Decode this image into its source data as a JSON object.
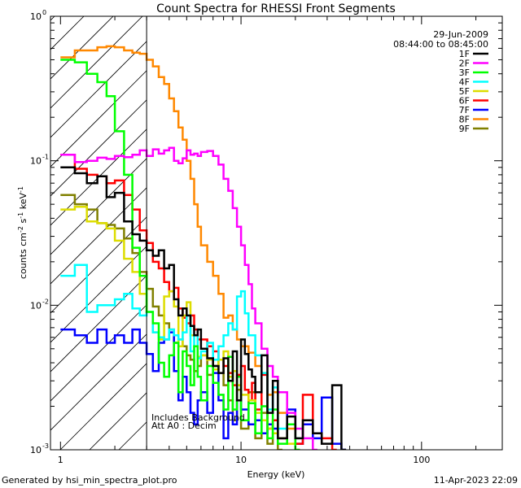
{
  "chart_data": {
    "type": "line",
    "title": "Count Spectra for RHESSI Front Segments",
    "xlabel": "Energy (keV)",
    "ylabel_main": "counts cm",
    "ylabel_exp1": "-2",
    "ylabel_mid": " s",
    "ylabel_exp2": "-1",
    "ylabel_end": " keV",
    "ylabel_exp3": "-1",
    "x_scale": "log",
    "y_scale": "log",
    "xlim": [
      0.88,
      280
    ],
    "ylim": [
      0.001,
      1
    ],
    "x_ticks": [
      {
        "v": 1,
        "label": "1"
      },
      {
        "v": 10,
        "label": "10"
      },
      {
        "v": 100,
        "label": "100"
      }
    ],
    "y_ticks": [
      {
        "v": 1,
        "base": "10",
        "exp": "0"
      },
      {
        "v": 0.1,
        "base": "10",
        "exp": "-1"
      },
      {
        "v": 0.01,
        "base": "10",
        "exp": "-2"
      },
      {
        "v": 0.001,
        "base": "10",
        "exp": "-3"
      }
    ],
    "date": "29-Jun-2009",
    "time_range": "08:44:00 to 08:45:00",
    "attenuator_cutoff_kev": 3,
    "note_lines": [
      "Includes Background",
      "Att A0 : Decim"
    ],
    "footer_left": "Generated by hsi_min_spectra_plot.pro",
    "footer_right": "11-Apr-2023 22:09",
    "legend_position": "top-right",
    "series": [
      {
        "name": "1F",
        "color": "#000000",
        "x": [
          1.0,
          1.2,
          1.4,
          1.6,
          1.8,
          2.0,
          2.25,
          2.5,
          2.75,
          3.0,
          3.25,
          3.5,
          3.75,
          4.0,
          4.25,
          4.5,
          4.75,
          5.0,
          5.25,
          5.5,
          5.75,
          6.0,
          6.5,
          7.0,
          7.5,
          8.0,
          8.5,
          9.0,
          9.5,
          10.0,
          10.5,
          11.0,
          11.5,
          12.0,
          13.0,
          14.0,
          15.0,
          16.0,
          18.0,
          20.0,
          22.0,
          25.0,
          28.0,
          32.0,
          36.0
        ],
        "y": [
          0.09,
          0.082,
          0.07,
          0.078,
          0.056,
          0.06,
          0.038,
          0.031,
          0.028,
          0.024,
          0.022,
          0.024,
          0.018,
          0.019,
          0.011,
          0.0085,
          0.0095,
          0.0085,
          0.0072,
          0.0062,
          0.0068,
          0.005,
          0.0043,
          0.0038,
          0.0034,
          0.0043,
          0.003,
          0.0048,
          0.0022,
          0.0058,
          0.0046,
          0.0036,
          0.0032,
          0.0025,
          0.0045,
          0.0018,
          0.003,
          0.0012,
          0.0017,
          0.0012,
          0.0016,
          0.0013,
          0.0011,
          0.0028,
          0.001
        ]
      },
      {
        "name": "2F",
        "color": "#ff00ff",
        "x": [
          1.0,
          1.2,
          1.4,
          1.6,
          1.8,
          2.0,
          2.25,
          2.5,
          2.75,
          3.0,
          3.25,
          3.5,
          3.75,
          4.0,
          4.25,
          4.5,
          4.75,
          5.0,
          5.25,
          5.5,
          5.75,
          6.0,
          6.5,
          7.0,
          7.5,
          8.0,
          8.5,
          9.0,
          9.5,
          10.0,
          10.5,
          11.0,
          11.5,
          12.0,
          13.0,
          14.0,
          15.0,
          16.0,
          18.0,
          20.0,
          22.0,
          25.0
        ],
        "y": [
          0.11,
          0.098,
          0.1,
          0.105,
          0.103,
          0.108,
          0.106,
          0.11,
          0.118,
          0.108,
          0.12,
          0.112,
          0.118,
          0.123,
          0.1,
          0.096,
          0.104,
          0.118,
          0.11,
          0.112,
          0.108,
          0.115,
          0.117,
          0.108,
          0.094,
          0.075,
          0.062,
          0.047,
          0.035,
          0.026,
          0.019,
          0.014,
          0.0095,
          0.0075,
          0.005,
          0.0038,
          0.0032,
          0.0025,
          0.0018,
          0.0014,
          0.0012,
          0.001
        ]
      },
      {
        "name": "3F",
        "color": "#00ff00",
        "x": [
          1.0,
          1.2,
          1.4,
          1.6,
          1.8,
          2.0,
          2.25,
          2.5,
          2.75,
          3.0,
          3.25,
          3.5,
          3.75,
          4.0,
          4.25,
          4.5,
          4.75,
          5.0,
          5.25,
          5.5,
          5.75,
          6.0,
          6.5,
          7.0,
          7.5,
          8.0,
          8.5,
          9.0,
          9.5,
          10.0,
          11.0,
          12.0,
          13.0,
          14.0,
          15.0,
          16.0,
          18.0,
          20.0
        ],
        "y": [
          0.5,
          0.48,
          0.4,
          0.35,
          0.28,
          0.16,
          0.08,
          0.025,
          0.016,
          0.009,
          0.0075,
          0.004,
          0.0032,
          0.0045,
          0.0055,
          0.0025,
          0.0048,
          0.0038,
          0.0028,
          0.0052,
          0.0032,
          0.0022,
          0.0038,
          0.0029,
          0.0024,
          0.0019,
          0.0044,
          0.0019,
          0.0032,
          0.0016,
          0.0021,
          0.0013,
          0.002,
          0.0012,
          0.0019,
          0.0011,
          0.0015,
          0.001
        ]
      },
      {
        "name": "4F",
        "color": "#00ffff",
        "x": [
          1.0,
          1.2,
          1.4,
          1.6,
          1.8,
          2.0,
          2.25,
          2.5,
          2.75,
          3.0,
          3.25,
          3.5,
          3.75,
          4.0,
          4.25,
          4.5,
          4.75,
          5.0,
          5.25,
          5.5,
          5.75,
          6.0,
          6.5,
          7.0,
          7.5,
          8.0,
          8.5,
          9.0,
          9.5,
          10.0,
          10.5,
          11.0,
          12.0,
          13.0,
          14.0,
          15.0,
          16.0,
          18.0,
          20.0
        ],
        "y": [
          0.016,
          0.019,
          0.009,
          0.01,
          0.01,
          0.011,
          0.012,
          0.0095,
          0.0085,
          0.009,
          0.0065,
          0.006,
          0.0058,
          0.0068,
          0.0062,
          0.0058,
          0.0065,
          0.0085,
          0.0048,
          0.0062,
          0.0043,
          0.0048,
          0.0055,
          0.0042,
          0.0052,
          0.0062,
          0.0075,
          0.0068,
          0.0115,
          0.0125,
          0.0088,
          0.0062,
          0.0045,
          0.0034,
          0.0019,
          0.0027,
          0.0014,
          0.0015,
          0.0012
        ]
      },
      {
        "name": "5F",
        "color": "#dddd00",
        "x": [
          1.0,
          1.2,
          1.4,
          1.6,
          1.8,
          2.0,
          2.25,
          2.5,
          2.75,
          3.0,
          3.25,
          3.5,
          3.75,
          4.0,
          4.25,
          4.5,
          4.75,
          5.0,
          5.25,
          5.5,
          5.75,
          6.0,
          6.5,
          7.0,
          7.5,
          8.0,
          8.5,
          9.0,
          9.5,
          10.0,
          11.0,
          12.0,
          13.0,
          14.0,
          15.0,
          16.0,
          18.0,
          20.0
        ],
        "y": [
          0.046,
          0.048,
          0.038,
          0.037,
          0.034,
          0.028,
          0.021,
          0.017,
          0.012,
          0.009,
          0.0065,
          0.0058,
          0.0115,
          0.0125,
          0.0098,
          0.0052,
          0.0085,
          0.0105,
          0.0062,
          0.0062,
          0.0044,
          0.0045,
          0.0042,
          0.0036,
          0.0042,
          0.0048,
          0.0032,
          0.0035,
          0.0028,
          0.0024,
          0.0022,
          0.0018,
          0.0016,
          0.0014,
          0.0013,
          0.0012,
          0.0011,
          0.001
        ]
      },
      {
        "name": "6F",
        "color": "#ff0000",
        "x": [
          1.0,
          1.2,
          1.4,
          1.6,
          1.8,
          2.0,
          2.25,
          2.5,
          2.75,
          3.0,
          3.25,
          3.5,
          3.75,
          4.0,
          4.25,
          4.5,
          4.75,
          5.0,
          5.25,
          5.5,
          5.75,
          6.0,
          6.5,
          7.0,
          7.5,
          8.0,
          8.5,
          9.0,
          9.5,
          10.0,
          10.5,
          11.0,
          11.5,
          12.0,
          13.0,
          14.0,
          15.0,
          16.0,
          18.0,
          20.0,
          22.0,
          25.0,
          28.0,
          32.0
        ],
        "y": [
          0.11,
          0.088,
          0.08,
          0.078,
          0.07,
          0.073,
          0.058,
          0.046,
          0.033,
          0.027,
          0.02,
          0.018,
          0.0145,
          0.0125,
          0.0132,
          0.0095,
          0.0082,
          0.0075,
          0.0085,
          0.0068,
          0.0058,
          0.0058,
          0.0052,
          0.0048,
          0.0042,
          0.0038,
          0.0034,
          0.0028,
          0.0033,
          0.0038,
          0.0026,
          0.0022,
          0.0029,
          0.0019,
          0.0033,
          0.0014,
          0.0016,
          0.0012,
          0.0015,
          0.0011,
          0.0024,
          0.0013,
          0.0012,
          0.001
        ]
      },
      {
        "name": "7F",
        "color": "#0000ff",
        "x": [
          1.0,
          1.2,
          1.4,
          1.6,
          1.8,
          2.0,
          2.25,
          2.5,
          2.75,
          3.0,
          3.25,
          3.5,
          3.75,
          4.0,
          4.25,
          4.5,
          4.75,
          5.0,
          5.25,
          5.5,
          5.75,
          6.0,
          6.5,
          7.0,
          7.5,
          8.0,
          8.5,
          9.0,
          9.5,
          10.0,
          11.0,
          12.0,
          13.0,
          14.0,
          15.0,
          16.0,
          18.0,
          20.0,
          22.0,
          25.0,
          28.0,
          32.0,
          36.0
        ],
        "y": [
          0.0068,
          0.0062,
          0.0055,
          0.0068,
          0.0055,
          0.0062,
          0.0055,
          0.0068,
          0.0055,
          0.0046,
          0.0035,
          0.0055,
          0.0058,
          0.0065,
          0.0035,
          0.0022,
          0.0032,
          0.0025,
          0.0018,
          0.0015,
          0.0022,
          0.0025,
          0.0018,
          0.0034,
          0.0022,
          0.0012,
          0.0018,
          0.0015,
          0.0022,
          0.0019,
          0.0015,
          0.0016,
          0.0013,
          0.0015,
          0.0014,
          0.0012,
          0.0019,
          0.0011,
          0.0015,
          0.0012,
          0.0023,
          0.0011,
          0.001
        ]
      },
      {
        "name": "8F",
        "color": "#ff8800",
        "x": [
          1.0,
          1.2,
          1.4,
          1.6,
          1.8,
          2.0,
          2.25,
          2.5,
          2.75,
          3.0,
          3.25,
          3.5,
          3.75,
          4.0,
          4.25,
          4.5,
          4.75,
          5.0,
          5.25,
          5.5,
          5.75,
          6.0,
          6.5,
          7.0,
          7.5,
          8.0,
          8.5,
          9.0,
          9.5,
          10.0,
          11.0,
          12.0,
          13.0,
          14.0,
          15.0,
          16.0,
          18.0,
          20.0
        ],
        "y": [
          0.52,
          0.58,
          0.58,
          0.61,
          0.62,
          0.61,
          0.58,
          0.56,
          0.55,
          0.5,
          0.45,
          0.38,
          0.34,
          0.27,
          0.22,
          0.17,
          0.14,
          0.1,
          0.075,
          0.05,
          0.035,
          0.026,
          0.02,
          0.016,
          0.012,
          0.0082,
          0.0085,
          0.0068,
          0.0058,
          0.0052,
          0.0047,
          0.0038,
          0.0034,
          0.0024,
          0.0025,
          0.0018,
          0.0014,
          0.0012
        ]
      },
      {
        "name": "9F",
        "color": "#808000",
        "x": [
          1.0,
          1.2,
          1.4,
          1.6,
          1.8,
          2.0,
          2.25,
          2.5,
          2.75,
          3.0,
          3.25,
          3.5,
          3.75,
          4.0,
          4.25,
          4.5,
          4.75,
          5.0,
          5.25,
          5.5,
          5.75,
          6.0,
          6.5,
          7.0,
          7.5,
          8.0,
          8.5,
          9.0,
          9.5,
          10.0,
          11.0,
          12.0,
          13.0,
          14.0,
          15.0,
          16.0
        ],
        "y": [
          0.058,
          0.05,
          0.046,
          0.037,
          0.036,
          0.034,
          0.029,
          0.023,
          0.017,
          0.013,
          0.0098,
          0.0085,
          0.0075,
          0.0068,
          0.0055,
          0.0058,
          0.0052,
          0.0045,
          0.0042,
          0.0035,
          0.0038,
          0.0045,
          0.0033,
          0.0038,
          0.0042,
          0.0028,
          0.0022,
          0.0016,
          0.0026,
          0.0014,
          0.0025,
          0.0012,
          0.0018,
          0.0011,
          0.0013,
          0.001
        ]
      }
    ]
  }
}
